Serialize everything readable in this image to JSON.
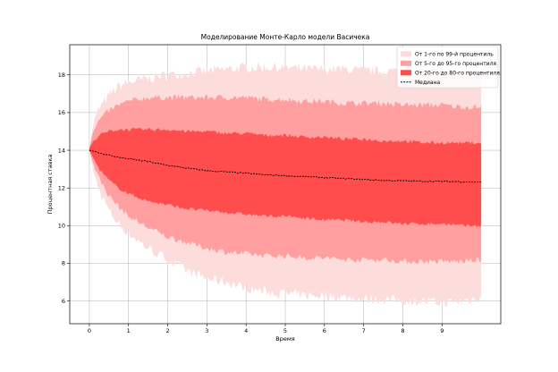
{
  "chart_data": {
    "type": "area",
    "title": "Моделирование Монте-Карло модели Васичека",
    "xlabel": "Время",
    "ylabel": "Процентная ставка",
    "xlim": [
      -0.5,
      10.5
    ],
    "ylim": [
      4.8,
      19.6
    ],
    "xticks": [
      0,
      1,
      2,
      3,
      4,
      5,
      6,
      7,
      8,
      9
    ],
    "yticks": [
      6,
      8,
      10,
      12,
      14,
      16,
      18
    ],
    "grid": true,
    "legend_position": "top-right",
    "x": [
      0,
      0.1,
      0.25,
      0.5,
      0.75,
      1,
      1.5,
      2,
      2.5,
      3,
      3.5,
      4,
      4.5,
      5,
      5.5,
      6,
      6.5,
      7,
      7.5,
      8,
      8.5,
      9,
      9.5,
      10
    ],
    "series": [
      {
        "name": "От 1-го по 99-й процентиль",
        "color": "#fddcdc",
        "lower": [
          14.0,
          12.9,
          11.9,
          10.8,
          10.1,
          9.6,
          8.8,
          8.2,
          7.6,
          7.2,
          7.0,
          6.7,
          6.5,
          6.4,
          6.3,
          6.3,
          6.2,
          6.1,
          6.1,
          6.0,
          6.0,
          5.9,
          6.0,
          6.2
        ],
        "upper": [
          14.1,
          15.4,
          16.2,
          16.9,
          17.4,
          17.6,
          17.8,
          18.0,
          18.1,
          18.2,
          18.3,
          18.4,
          18.4,
          18.4,
          18.3,
          18.3,
          18.3,
          18.2,
          18.2,
          18.2,
          18.2,
          18.2,
          18.2,
          18.2
        ]
      },
      {
        "name": "От 5-го до 95-го процентиля",
        "color": "#ff9f9f",
        "lower": [
          14.0,
          13.3,
          12.5,
          11.6,
          11.0,
          10.5,
          9.9,
          9.4,
          9.1,
          8.8,
          8.6,
          8.5,
          8.4,
          8.4,
          8.3,
          8.3,
          8.2,
          8.2,
          8.2,
          8.1,
          8.1,
          8.1,
          8.1,
          8.2
        ],
        "upper": [
          14.1,
          15.0,
          15.6,
          16.1,
          16.4,
          16.6,
          16.8,
          16.8,
          16.8,
          16.8,
          16.8,
          16.8,
          16.7,
          16.7,
          16.6,
          16.6,
          16.5,
          16.5,
          16.5,
          16.4,
          16.4,
          16.4,
          16.3,
          16.3
        ]
      },
      {
        "name": "От 20-го до 80-го процентиля",
        "color": "#ff4d4d",
        "lower": [
          14.0,
          13.6,
          13.0,
          12.4,
          12.0,
          11.7,
          11.3,
          11.1,
          10.9,
          10.8,
          10.7,
          10.6,
          10.5,
          10.5,
          10.4,
          10.3,
          10.3,
          10.2,
          10.2,
          10.1,
          10.1,
          10.1,
          10.0,
          10.0
        ],
        "upper": [
          14.1,
          14.5,
          14.8,
          15.0,
          15.1,
          15.1,
          15.1,
          15.1,
          15.0,
          15.0,
          14.9,
          14.9,
          14.8,
          14.8,
          14.7,
          14.7,
          14.6,
          14.6,
          14.5,
          14.5,
          14.4,
          14.4,
          14.4,
          14.4
        ]
      },
      {
        "name": "Медиана",
        "color": "#000000",
        "style": "dashed",
        "values": [
          14.0,
          13.95,
          13.85,
          13.75,
          13.62,
          13.55,
          13.4,
          13.2,
          13.05,
          12.92,
          12.85,
          12.78,
          12.7,
          12.65,
          12.6,
          12.55,
          12.5,
          12.45,
          12.4,
          12.38,
          12.36,
          12.35,
          12.33,
          12.32
        ]
      }
    ]
  }
}
